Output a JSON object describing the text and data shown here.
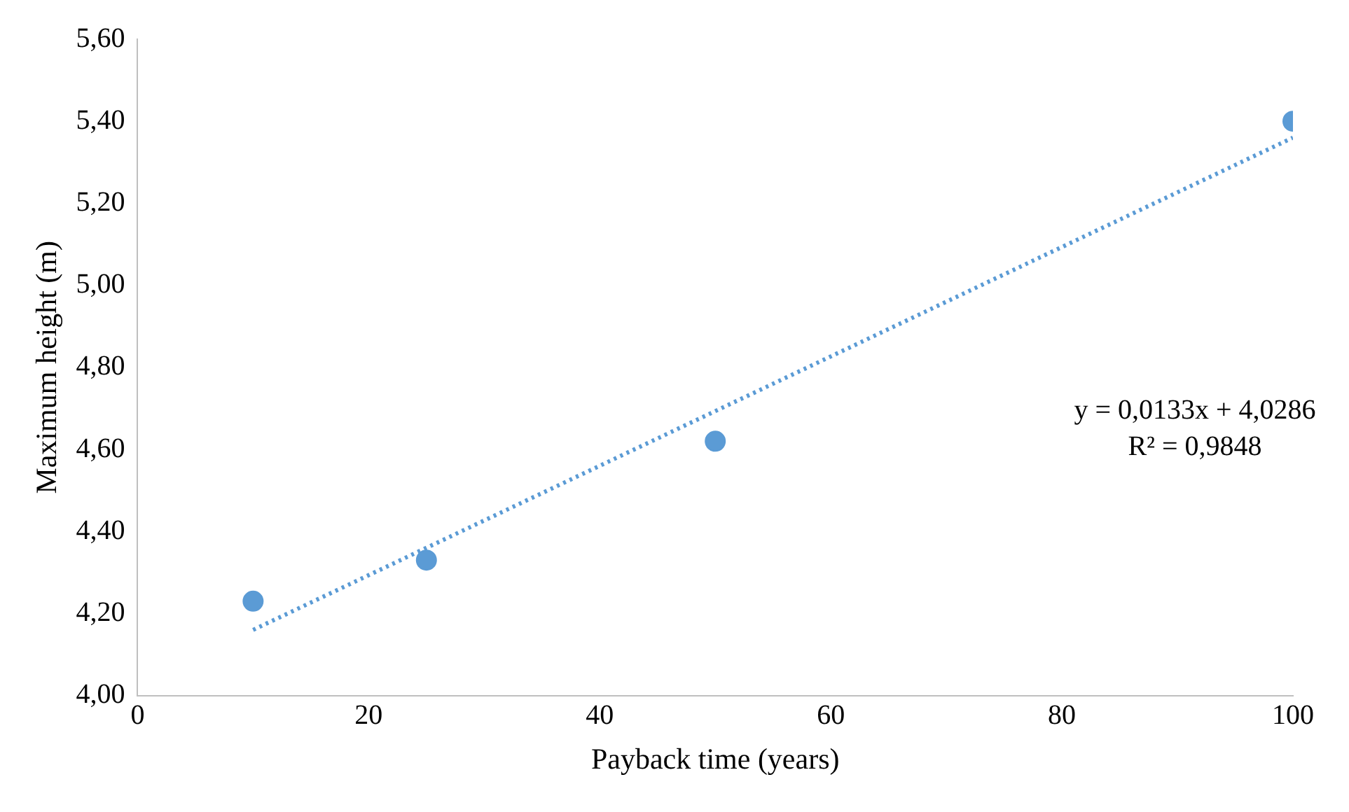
{
  "chart_data": {
    "type": "scatter",
    "xlabel": "Payback time (years)",
    "ylabel": "Maximum height (m)",
    "series": [
      {
        "type": "scatter",
        "color": "#5b9bd5",
        "x": [
          10,
          25,
          50,
          100
        ],
        "values": [
          4.23,
          4.33,
          4.62,
          5.4
        ],
        "marker": "circle"
      },
      {
        "type": "line",
        "color": "#5b9bd5",
        "x": [
          10,
          100
        ],
        "values": [
          4.16,
          5.36
        ],
        "line_style": "dotted",
        "marker": "none"
      }
    ],
    "xlim": [
      0,
      100
    ],
    "xticks": [
      0,
      20,
      40,
      60,
      80,
      100
    ],
    "ylim": [
      4.0,
      5.6
    ],
    "yticks": [
      {
        "value": 4.0,
        "label": "4,00"
      },
      {
        "value": 4.2,
        "label": "4,20"
      },
      {
        "value": 4.4,
        "label": "4,40"
      },
      {
        "value": 4.6,
        "label": "4,60"
      },
      {
        "value": 4.8,
        "label": "4,80"
      },
      {
        "value": 5.0,
        "label": "5,00"
      },
      {
        "value": 5.2,
        "label": "5,20"
      },
      {
        "value": 5.4,
        "label": "5,40"
      },
      {
        "value": 5.6,
        "label": "5,60"
      }
    ],
    "grid": false,
    "legend": false,
    "annotations": [
      "y = 0,0133x + 4,0286",
      "R² = 0,9848"
    ]
  }
}
